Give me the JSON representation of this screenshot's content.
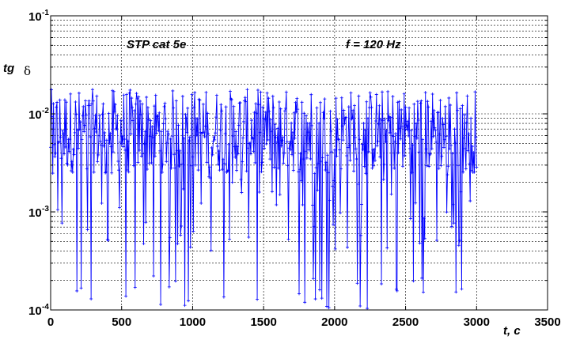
{
  "chart_data": {
    "type": "line",
    "title": "",
    "xlabel": "t, c",
    "ylabel_main": "tg",
    "ylabel_symbol": "δ",
    "annotations": [
      "STP cat 5e",
      "f = 120 Hz"
    ],
    "xlim": [
      0,
      3500
    ],
    "ylim": [
      0.0001,
      0.1
    ],
    "yscale": "log",
    "grid": "on",
    "x_tick_labels": [
      "0",
      "500",
      "1000",
      "1500",
      "2000",
      "2500",
      "3000",
      "3500"
    ],
    "y_tick_labels": [
      {
        "base": "10",
        "exp": "-4"
      },
      {
        "base": "10",
        "exp": "-3"
      },
      {
        "base": "10",
        "exp": "-2"
      },
      {
        "base": "10",
        "exp": "-1"
      }
    ],
    "series": [
      {
        "color": "#0000ff",
        "marker": "+",
        "x_start": 0,
        "x_step": 5,
        "n_points": 601,
        "y_min": 0.0001,
        "y_max": 0.026,
        "y_typical": 0.008
      }
    ]
  }
}
